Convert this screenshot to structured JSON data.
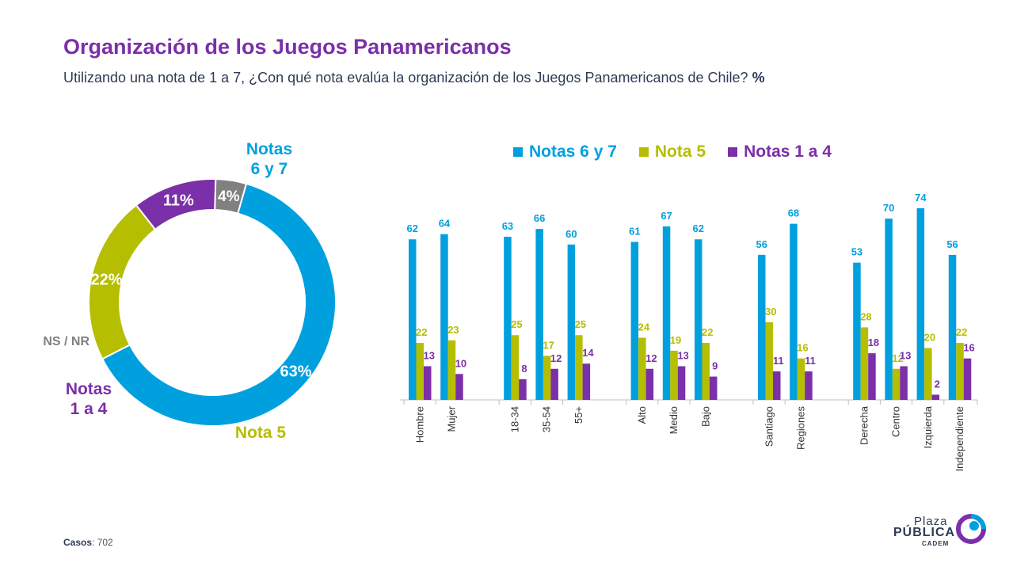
{
  "header": {
    "title": "Organización de los Juegos Panamericanos",
    "subtitle": "Utilizando una nota de 1 a 7, ¿Con qué nota evalúa la organización de los Juegos Panamericanos de Chile?",
    "subtitle_unit": "%"
  },
  "colors": {
    "high": "#00a0df",
    "mid": "#b5be00",
    "low": "#7b2fa8",
    "nsnr": "#808080"
  },
  "legend": [
    {
      "label": "Notas 6 y 7",
      "color": "#00a0df"
    },
    {
      "label": "Nota 5",
      "color": "#b5be00"
    },
    {
      "label": "Notas 1 a 4",
      "color": "#7b2fa8"
    }
  ],
  "footer": {
    "label": "Casos",
    "value": ": 702"
  },
  "logo": {
    "line1": "Plaza",
    "line2": "PÚBLICA",
    "line3": "CADEM"
  },
  "chart_data": [
    {
      "type": "pie",
      "style": "donut",
      "slices": [
        {
          "label_lines": [
            "Notas",
            "6 y 7"
          ],
          "value": 63,
          "value_label": "63%",
          "color": "#00a0df"
        },
        {
          "label_lines": [
            "Nota 5"
          ],
          "value": 22,
          "value_label": "22%",
          "color": "#b5be00"
        },
        {
          "label_lines": [
            "Notas",
            "1 a 4"
          ],
          "value": 11,
          "value_label": "11%",
          "color": "#7b2fa8"
        },
        {
          "label_lines": [
            "NS / NR"
          ],
          "value": 4,
          "value_label": "4%",
          "color": "#808080"
        }
      ]
    },
    {
      "type": "bar",
      "groups": [
        {
          "categories": [
            "Hombre",
            "Mujer"
          ]
        },
        {
          "categories": [
            "18-34",
            "35-54",
            "55+"
          ]
        },
        {
          "categories": [
            "Alto",
            "Medio",
            "Bajo"
          ]
        },
        {
          "categories": [
            "Santiago",
            "Regiones"
          ]
        },
        {
          "categories": [
            "Derecha",
            "Centro",
            "Izquierda",
            "Independiente"
          ]
        }
      ],
      "series": [
        {
          "name": "Notas 6 y 7",
          "color": "#00a0df",
          "values": [
            62,
            64,
            63,
            66,
            60,
            61,
            67,
            62,
            56,
            68,
            53,
            70,
            74,
            56
          ]
        },
        {
          "name": "Nota 5",
          "color": "#b5be00",
          "values": [
            22,
            23,
            25,
            17,
            25,
            24,
            19,
            22,
            30,
            16,
            28,
            12,
            20,
            22
          ]
        },
        {
          "name": "Notas 1 a 4",
          "color": "#7b2fa8",
          "values": [
            13,
            10,
            8,
            12,
            14,
            12,
            13,
            9,
            11,
            11,
            18,
            13,
            2,
            16
          ]
        }
      ]
    }
  ]
}
